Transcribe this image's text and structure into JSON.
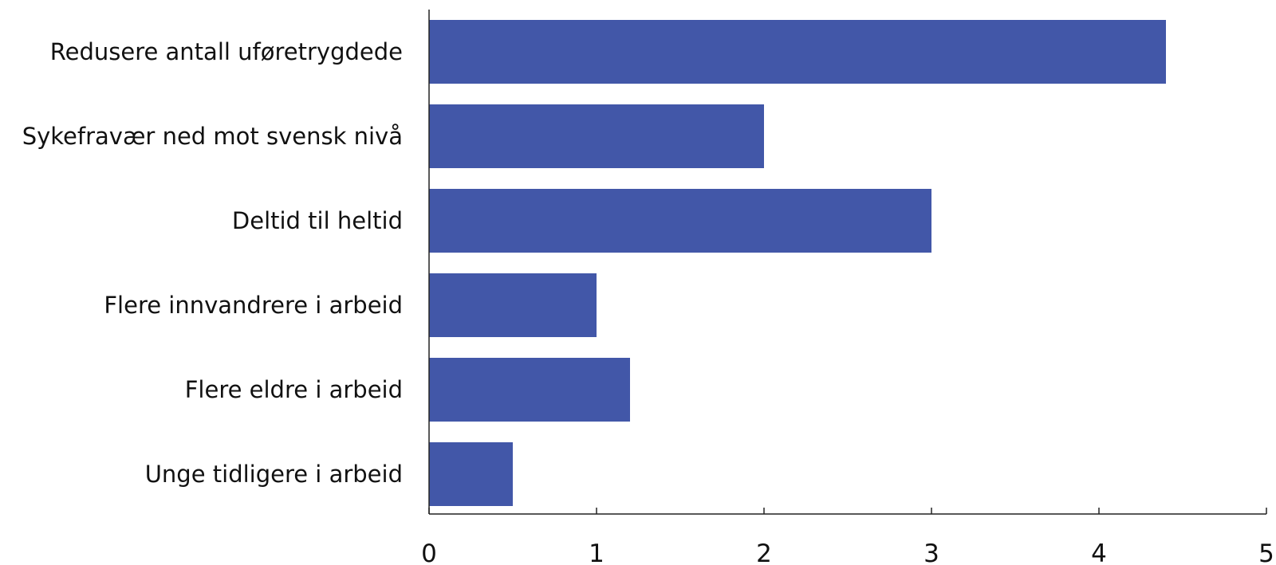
{
  "chart_data": {
    "type": "bar",
    "orientation": "horizontal",
    "categories": [
      "Redusere antall uføretrygdede",
      "Sykefravær ned mot svensk nivå",
      "Deltid til heltid",
      "Flere innvandrere i arbeid",
      "Flere eldre i arbeid",
      "Unge tidligere i arbeid"
    ],
    "values": [
      4.4,
      2.0,
      3.0,
      1.0,
      1.2,
      0.5
    ],
    "xlim": [
      0,
      5
    ],
    "xticks": [
      0,
      1,
      2,
      3,
      4,
      5
    ],
    "title": "",
    "xlabel": "",
    "ylabel": "",
    "grid": false,
    "legend": "none",
    "bar_color": "#4257a8"
  }
}
